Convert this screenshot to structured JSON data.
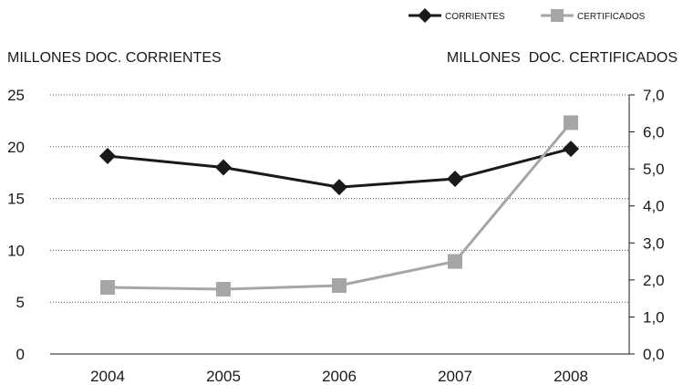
{
  "chart_data": {
    "type": "line",
    "x": [
      "2004",
      "2005",
      "2006",
      "2007",
      "2008"
    ],
    "series": [
      {
        "name": "CORRIENTES",
        "axis": "left",
        "marker": "diamond",
        "color": "#1a1a1a",
        "values": [
          19.1,
          18.0,
          16.1,
          16.9,
          19.8
        ]
      },
      {
        "name": "CERTIFICADOS",
        "axis": "right",
        "marker": "square",
        "color": "#a6a6a6",
        "values": [
          1.8,
          1.75,
          1.85,
          2.5,
          6.25
        ]
      }
    ],
    "ylabel_left": "MILLONES DOC. CORRIENTES",
    "ylabel_right": "MILLONES  DOC. CERTIFICADOS",
    "ylim_left": [
      0,
      25
    ],
    "ylim_right": [
      0,
      7
    ],
    "yticks_left": [
      "0",
      "5",
      "10",
      "15",
      "20",
      "25"
    ],
    "yticks_right": [
      "0,0",
      "1,0",
      "2,0",
      "3,0",
      "4,0",
      "5,0",
      "6,0",
      "7,0"
    ],
    "grid": "horizontal dotted",
    "legend_position": "top-right"
  }
}
